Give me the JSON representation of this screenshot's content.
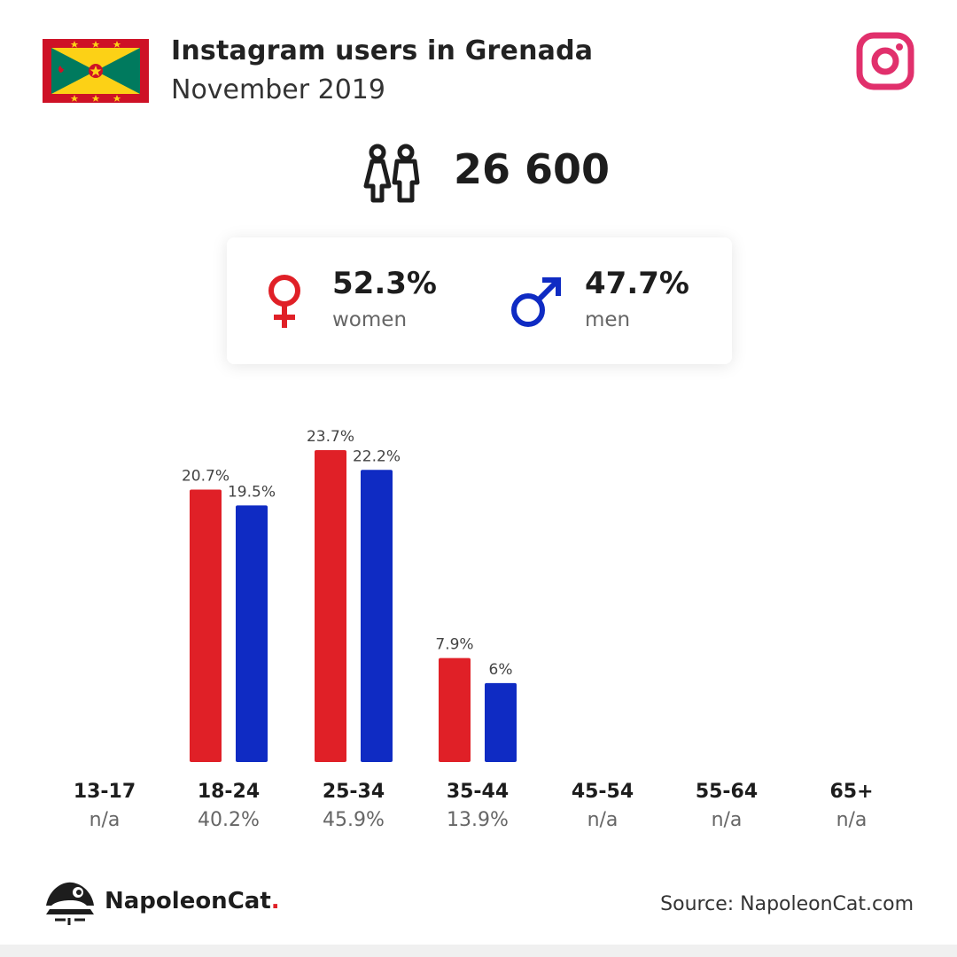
{
  "header": {
    "title": "Instagram users in Grenada",
    "subtitle": "November 2019",
    "flag_icon": "grenada-flag",
    "platform_icon": "instagram-icon"
  },
  "total": {
    "icon": "users-icon",
    "value": "26 600"
  },
  "gender": {
    "women": {
      "percent": "52.3%",
      "label": "women",
      "icon": "female-icon",
      "color": "#e02027"
    },
    "men": {
      "percent": "47.7%",
      "label": "men",
      "icon": "male-icon",
      "color": "#0f2bc3"
    }
  },
  "chart_data": {
    "type": "bar",
    "categories": [
      "13-17",
      "18-24",
      "25-34",
      "35-44",
      "45-54",
      "55-64",
      "65+"
    ],
    "totals": [
      "n/a",
      "40.2%",
      "45.9%",
      "13.9%",
      "n/a",
      "n/a",
      "n/a"
    ],
    "series": [
      {
        "name": "women",
        "color": "#e02027",
        "values": [
          null,
          20.7,
          23.7,
          7.9,
          null,
          null,
          null
        ],
        "labels": [
          "",
          "20.7%",
          "23.7%",
          "7.9%",
          "",
          "",
          ""
        ]
      },
      {
        "name": "men",
        "color": "#0f2bc3",
        "values": [
          null,
          19.5,
          22.2,
          6,
          null,
          null,
          null
        ],
        "labels": [
          "",
          "19.5%",
          "22.2%",
          "6%",
          "",
          "",
          ""
        ]
      }
    ],
    "ylim": [
      0,
      23.7
    ]
  },
  "footer": {
    "brand_name": "NapoleonCat",
    "brand_dot": ".",
    "source": "Source: NapoleonCat.com",
    "logo_icon": "napoleoncat-logo"
  }
}
